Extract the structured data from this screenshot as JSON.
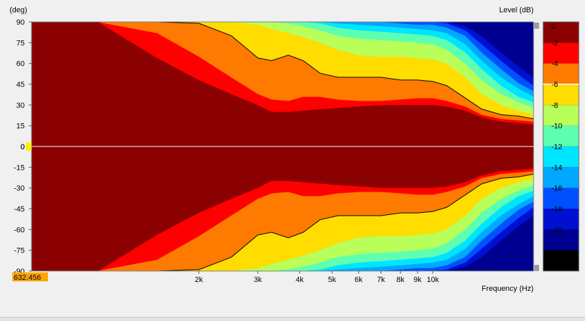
{
  "chart_data": {
    "type": "heatmap",
    "title": "",
    "xlabel": "Frequency (Hz)",
    "ylabel": "(deg)",
    "xscale": "log",
    "xlim": [
      632.456,
      20000
    ],
    "ylim": [
      -90,
      90
    ],
    "x_tick_labels": [
      "2k",
      "3k",
      "4k",
      "5k",
      "6k",
      "7k",
      "8k",
      "9k",
      "10k"
    ],
    "x_ticks": [
      2000,
      3000,
      4000,
      5000,
      6000,
      7000,
      8000,
      9000,
      10000
    ],
    "y_ticks": [
      90,
      75,
      60,
      45,
      30,
      15,
      0,
      -15,
      -30,
      -45,
      -60,
      -75,
      -90
    ],
    "y_tick_labels": [
      "90",
      "75",
      "60",
      "45",
      "30",
      "15",
      "0",
      "-15",
      "-30",
      "-45",
      "-60",
      "-75",
      "-90"
    ],
    "cursor_x_readout": "632.456",
    "cursor_y_readout": "0",
    "colorbar": {
      "label": "Level (dB)",
      "levels": [
        0,
        -2,
        -4,
        -6,
        -8,
        -10,
        -12,
        -14,
        -16,
        -18,
        -20
      ],
      "level_labels": [
        "0",
        "-2",
        "-4",
        "-6",
        "-8",
        "-10",
        "-12",
        "-14",
        "-16",
        "-18",
        "-20"
      ],
      "colors": [
        "#8b0000",
        "#ff0000",
        "#ff7a00",
        "#ffdd00",
        "#b8ff5a",
        "#5effb0",
        "#00e5ff",
        "#00a8ff",
        "#0050ff",
        "#0010d0",
        "#000090",
        "#000000"
      ]
    },
    "contour_levels_db": [
      -2,
      -4,
      -6,
      -8,
      -10,
      -12,
      -14,
      -16,
      -18,
      -20
    ],
    "highlighted_contour_db": -6,
    "contour_angle_upper": {
      "freq": [
        632.456,
        1000,
        1500,
        2000,
        2500,
        3000,
        3300,
        3700,
        4100,
        4600,
        5200,
        6000,
        7000,
        8000,
        9000,
        10000,
        11000,
        12500,
        14000,
        16000,
        18000,
        20000
      ],
      "-2": [
        90,
        90,
        64,
        48,
        38,
        30,
        25,
        25,
        26,
        27,
        28,
        29,
        30,
        30,
        30,
        30,
        29,
        26,
        21,
        18,
        17,
        16
      ],
      "-4": [
        90,
        90,
        82,
        65,
        50,
        38,
        34,
        33,
        36,
        36,
        34,
        33,
        33,
        34,
        35,
        35,
        33,
        29,
        23,
        20,
        19,
        18
      ],
      "-6": [
        90,
        90,
        90,
        89,
        80,
        64,
        62,
        66,
        62,
        53,
        50,
        50,
        50,
        48,
        48,
        47,
        44,
        35,
        27,
        23,
        22,
        20
      ],
      "-8": [
        90,
        90,
        90,
        90,
        90,
        88,
        85,
        82,
        79,
        75,
        70,
        66,
        65,
        65,
        64,
        63,
        60,
        50,
        38,
        30,
        26,
        23
      ],
      "-10": [
        90,
        90,
        90,
        90,
        90,
        90,
        90,
        89,
        87,
        84,
        80,
        78,
        77,
        76,
        75,
        74,
        70,
        60,
        48,
        38,
        32,
        28
      ],
      "-12": [
        90,
        90,
        90,
        90,
        90,
        90,
        90,
        90,
        90,
        89,
        86,
        84,
        83,
        82,
        81,
        80,
        77,
        68,
        56,
        44,
        36,
        32
      ],
      "-14": [
        90,
        90,
        90,
        90,
        90,
        90,
        90,
        90,
        90,
        90,
        89,
        88,
        87,
        86,
        85,
        84,
        82,
        74,
        62,
        50,
        42,
        36
      ],
      "-16": [
        90,
        90,
        90,
        90,
        90,
        90,
        90,
        90,
        90,
        90,
        90,
        90,
        90,
        89,
        88,
        88,
        86,
        80,
        68,
        56,
        46,
        40
      ],
      "-18": [
        90,
        90,
        90,
        90,
        90,
        90,
        90,
        90,
        90,
        90,
        90,
        90,
        90,
        90,
        90,
        90,
        89,
        84,
        74,
        62,
        52,
        44
      ],
      "-20": [
        90,
        90,
        90,
        90,
        90,
        90,
        90,
        90,
        90,
        90,
        90,
        90,
        90,
        90,
        90,
        90,
        90,
        87,
        80,
        68,
        58,
        50
      ]
    },
    "contour_angle_lower": {
      "freq": [
        632.456,
        1000,
        1500,
        2000,
        2500,
        3000,
        3300,
        3700,
        4100,
        4600,
        5200,
        6000,
        7000,
        8000,
        9000,
        10000,
        11000,
        12500,
        14000,
        16000,
        18000,
        20000
      ],
      "-2": [
        -90,
        -90,
        -64,
        -48,
        -38,
        -30,
        -25,
        -25,
        -26,
        -27,
        -28,
        -29,
        -30,
        -30,
        -30,
        -30,
        -29,
        -26,
        -21,
        -18,
        -17,
        -16
      ],
      "-4": [
        -90,
        -90,
        -82,
        -65,
        -50,
        -38,
        -34,
        -33,
        -36,
        -36,
        -34,
        -33,
        -33,
        -34,
        -35,
        -35,
        -33,
        -29,
        -23,
        -20,
        -19,
        -18
      ],
      "-6": [
        -90,
        -90,
        -90,
        -89,
        -80,
        -64,
        -62,
        -66,
        -62,
        -53,
        -50,
        -50,
        -50,
        -48,
        -48,
        -47,
        -44,
        -35,
        -27,
        -23,
        -22,
        -20
      ],
      "-8": [
        -90,
        -90,
        -90,
        -90,
        -90,
        -88,
        -85,
        -82,
        -79,
        -75,
        -70,
        -66,
        -65,
        -65,
        -64,
        -63,
        -60,
        -50,
        -38,
        -30,
        -26,
        -23
      ],
      "-10": [
        -90,
        -90,
        -90,
        -90,
        -90,
        -90,
        -90,
        -89,
        -87,
        -84,
        -80,
        -78,
        -77,
        -76,
        -75,
        -74,
        -70,
        -60,
        -48,
        -38,
        -32,
        -28
      ],
      "-12": [
        -90,
        -90,
        -90,
        -90,
        -90,
        -90,
        -90,
        -90,
        -90,
        -89,
        -86,
        -84,
        -83,
        -82,
        -81,
        -80,
        -77,
        -68,
        -56,
        -44,
        -36,
        -32
      ],
      "-14": [
        -90,
        -90,
        -90,
        -90,
        -90,
        -90,
        -90,
        -90,
        -90,
        -90,
        -89,
        -88,
        -87,
        -86,
        -85,
        -84,
        -82,
        -74,
        -62,
        -50,
        -42,
        -36
      ],
      "-16": [
        -90,
        -90,
        -90,
        -90,
        -90,
        -90,
        -90,
        -90,
        -90,
        -90,
        -90,
        -90,
        -90,
        -89,
        -88,
        -88,
        -86,
        -80,
        -68,
        -56,
        -46,
        -40
      ],
      "-18": [
        -90,
        -90,
        -90,
        -90,
        -90,
        -90,
        -90,
        -90,
        -90,
        -90,
        -90,
        -90,
        -90,
        -90,
        -90,
        -90,
        -89,
        -84,
        -74,
        -62,
        -52,
        -44
      ],
      "-20": [
        -90,
        -90,
        -90,
        -90,
        -90,
        -90,
        -90,
        -90,
        -90,
        -90,
        -90,
        -90,
        -90,
        -90,
        -90,
        -90,
        -90,
        -87,
        -80,
        -68,
        -58,
        -50
      ]
    }
  },
  "axes": {
    "y_unit_label": "(deg)",
    "x_unit_label": "Frequency  (Hz)",
    "colorbar_title": "Level  (dB)"
  }
}
